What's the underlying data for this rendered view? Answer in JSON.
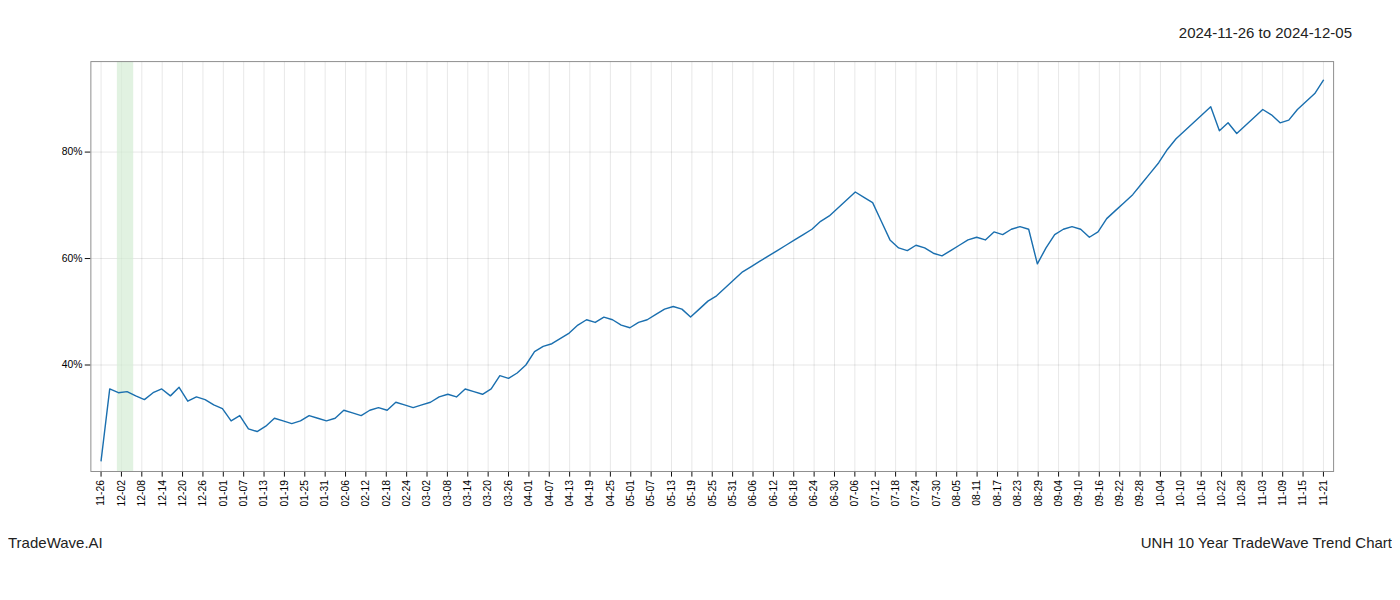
{
  "chart_data": {
    "type": "line",
    "title": "2024-11-26 to 2024-12-05",
    "annotations": [
      "TradeWave.AI",
      "UNH 10 Year TradeWave Trend Chart"
    ],
    "color": "#1a6faf",
    "grid": true,
    "highlight": {
      "x": [
        0.8,
        1.6
      ],
      "color": "#d4ecd4"
    },
    "xlim": [
      -0.5,
      60.5
    ],
    "xticks": [
      {
        "value": 0,
        "label": "11-26"
      },
      {
        "value": 1,
        "label": "12-02"
      },
      {
        "value": 2,
        "label": "12-08"
      },
      {
        "value": 3,
        "label": "12-14"
      },
      {
        "value": 4,
        "label": "12-20"
      },
      {
        "value": 5,
        "label": "12-26"
      },
      {
        "value": 6,
        "label": "01-01"
      },
      {
        "value": 7,
        "label": "01-07"
      },
      {
        "value": 8,
        "label": "01-13"
      },
      {
        "value": 9,
        "label": "01-19"
      },
      {
        "value": 10,
        "label": "01-25"
      },
      {
        "value": 11,
        "label": "01-31"
      },
      {
        "value": 12,
        "label": "02-06"
      },
      {
        "value": 13,
        "label": "02-12"
      },
      {
        "value": 14,
        "label": "02-18"
      },
      {
        "value": 15,
        "label": "02-24"
      },
      {
        "value": 16,
        "label": "03-02"
      },
      {
        "value": 17,
        "label": "03-08"
      },
      {
        "value": 18,
        "label": "03-14"
      },
      {
        "value": 19,
        "label": "03-20"
      },
      {
        "value": 20,
        "label": "03-26"
      },
      {
        "value": 21,
        "label": "04-01"
      },
      {
        "value": 22,
        "label": "04-07"
      },
      {
        "value": 23,
        "label": "04-13"
      },
      {
        "value": 24,
        "label": "04-19"
      },
      {
        "value": 25,
        "label": "04-25"
      },
      {
        "value": 26,
        "label": "05-01"
      },
      {
        "value": 27,
        "label": "05-07"
      },
      {
        "value": 28,
        "label": "05-13"
      },
      {
        "value": 29,
        "label": "05-19"
      },
      {
        "value": 30,
        "label": "05-25"
      },
      {
        "value": 31,
        "label": "05-31"
      },
      {
        "value": 32,
        "label": "06-06"
      },
      {
        "value": 33,
        "label": "06-12"
      },
      {
        "value": 34,
        "label": "06-18"
      },
      {
        "value": 35,
        "label": "06-24"
      },
      {
        "value": 36,
        "label": "06-30"
      },
      {
        "value": 37,
        "label": "07-06"
      },
      {
        "value": 38,
        "label": "07-12"
      },
      {
        "value": 39,
        "label": "07-18"
      },
      {
        "value": 40,
        "label": "07-24"
      },
      {
        "value": 41,
        "label": "07-30"
      },
      {
        "value": 42,
        "label": "08-05"
      },
      {
        "value": 43,
        "label": "08-11"
      },
      {
        "value": 44,
        "label": "08-17"
      },
      {
        "value": 45,
        "label": "08-23"
      },
      {
        "value": 46,
        "label": "08-29"
      },
      {
        "value": 47,
        "label": "09-04"
      },
      {
        "value": 48,
        "label": "09-10"
      },
      {
        "value": 49,
        "label": "09-16"
      },
      {
        "value": 50,
        "label": "09-22"
      },
      {
        "value": 51,
        "label": "09-28"
      },
      {
        "value": 52,
        "label": "10-04"
      },
      {
        "value": 53,
        "label": "10-10"
      },
      {
        "value": 54,
        "label": "10-16"
      },
      {
        "value": 55,
        "label": "10-22"
      },
      {
        "value": 56,
        "label": "10-28"
      },
      {
        "value": 57,
        "label": "11-03"
      },
      {
        "value": 58,
        "label": "11-09"
      },
      {
        "value": 59,
        "label": "11-15"
      },
      {
        "value": 60,
        "label": "11-21"
      }
    ],
    "ylim": [
      20,
      97
    ],
    "yticks": [
      {
        "value": 40,
        "label": "40%"
      },
      {
        "value": 60,
        "label": "60%"
      },
      {
        "value": 80,
        "label": "80%"
      }
    ],
    "x": [
      0,
      0.4255,
      0.8511,
      1.2766,
      1.7021,
      2.1277,
      2.5532,
      2.9787,
      3.4043,
      3.8298,
      4.2553,
      4.6809,
      5.1064,
      5.5319,
      5.9574,
      6.383,
      6.8085,
      7.234,
      7.6596,
      8.0851,
      8.5106,
      8.9362,
      9.3617,
      9.7872,
      10.2128,
      10.6383,
      11.0638,
      11.4894,
      11.9149,
      12.3404,
      12.766,
      13.1915,
      13.617,
      14.0426,
      14.4681,
      14.8936,
      15.3191,
      15.7447,
      16.1702,
      16.5957,
      17.0213,
      17.4468,
      17.8723,
      18.2979,
      18.7234,
      19.1489,
      19.5745,
      20,
      20.4255,
      20.8511,
      21.2766,
      21.7021,
      22.1277,
      22.5532,
      22.9787,
      23.4043,
      23.8298,
      24.2553,
      24.6809,
      25.1064,
      25.5319,
      25.9574,
      26.383,
      26.8085,
      27.234,
      27.6596,
      28.0851,
      28.5106,
      28.9362,
      29.3617,
      29.7872,
      30.2128,
      30.6383,
      31.0638,
      31.4894,
      31.9149,
      32.3404,
      32.766,
      33.1915,
      33.617,
      34.0426,
      34.4681,
      34.8936,
      35.3191,
      35.7447,
      36.1702,
      36.5957,
      37.0213,
      37.4468,
      37.8723,
      38.2979,
      38.7234,
      39.1489,
      39.5745,
      40,
      40.4255,
      40.8511,
      41.2766,
      41.7021,
      42.1277,
      42.5532,
      42.9787,
      43.4043,
      43.8298,
      44.2553,
      44.6809,
      45.1064,
      45.5319,
      45.9574,
      46.383,
      46.8085,
      47.234,
      47.6596,
      48.0851,
      48.5106,
      48.9362,
      49.3617,
      49.7872,
      50.2128,
      50.6383,
      51.0638,
      51.4894,
      51.9149,
      52.3404,
      52.766,
      53.1915,
      53.617,
      54.0426,
      54.4681,
      54.8936,
      55.3191,
      55.7447,
      56.1702,
      56.5957,
      57.0213,
      57.4468,
      57.8723,
      58.2979,
      58.7234,
      59.1489,
      59.5745,
      60
    ],
    "values": [
      22.0,
      35.5,
      34.8,
      35.0,
      34.2,
      33.5,
      34.8,
      35.5,
      34.2,
      35.8,
      33.2,
      34.0,
      33.5,
      32.5,
      31.8,
      29.5,
      30.5,
      28.0,
      27.5,
      28.5,
      30.0,
      29.5,
      29.0,
      29.5,
      30.5,
      30.0,
      29.5,
      30.0,
      31.5,
      31.0,
      30.5,
      31.5,
      32.0,
      31.5,
      33.0,
      32.5,
      32.0,
      32.5,
      33.0,
      34.0,
      34.5,
      34.0,
      35.5,
      35.0,
      34.5,
      35.5,
      38.0,
      37.5,
      38.5,
      40.0,
      42.5,
      43.5,
      44.0,
      45.0,
      46.0,
      47.5,
      48.5,
      48.0,
      49.0,
      48.5,
      47.5,
      47.0,
      48.0,
      48.5,
      49.5,
      50.5,
      51.0,
      50.5,
      49.0,
      50.5,
      52.0,
      53.0,
      54.5,
      56.0,
      57.5,
      58.5,
      59.5,
      60.5,
      61.5,
      62.5,
      63.5,
      64.5,
      65.5,
      67.0,
      68.0,
      69.5,
      71.0,
      72.5,
      71.5,
      70.5,
      67.0,
      63.5,
      62.0,
      61.5,
      62.5,
      62.0,
      61.0,
      60.5,
      61.5,
      62.5,
      63.5,
      64.0,
      63.5,
      65.0,
      64.5,
      65.5,
      66.0,
      65.5,
      59.0,
      62.0,
      64.5,
      65.5,
      66.0,
      65.5,
      64.0,
      65.0,
      67.5,
      69.0,
      70.5,
      72.0,
      74.0,
      76.0,
      78.0,
      80.5,
      82.5,
      84.0,
      85.5,
      87.0,
      88.5,
      84.0,
      85.5,
      83.5,
      85.0,
      86.5,
      88.0,
      87.0,
      85.5,
      86.0,
      88.0,
      89.5,
      91.0,
      93.5
    ]
  }
}
